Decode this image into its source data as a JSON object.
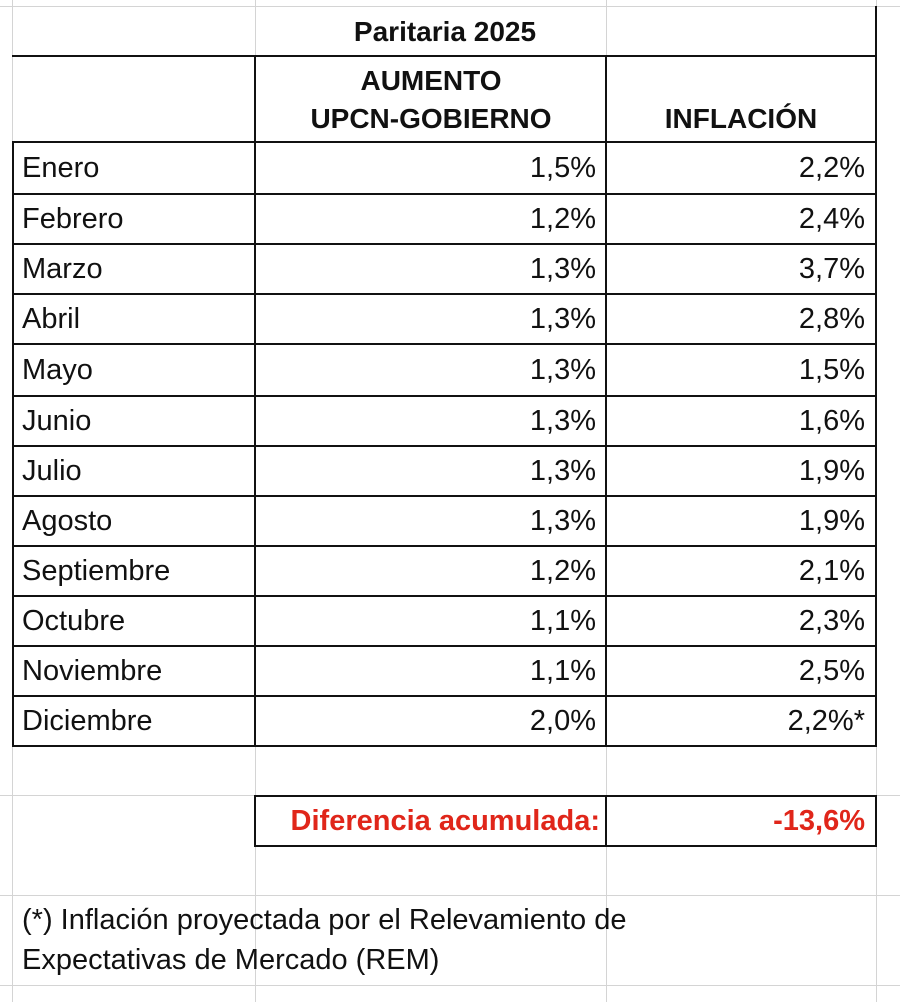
{
  "table": {
    "title": "Paritaria 2025",
    "headers": {
      "month": "",
      "raise_line1": "AUMENTO",
      "raise_line2": "UPCN-GOBIERNO",
      "inflation": "INFLACIÓN"
    },
    "rows": [
      {
        "month": "Enero",
        "raise": "1,5%",
        "inflation": "2,2%"
      },
      {
        "month": "Febrero",
        "raise": "1,2%",
        "inflation": "2,4%"
      },
      {
        "month": "Marzo",
        "raise": "1,3%",
        "inflation": "3,7%"
      },
      {
        "month": "Abril",
        "raise": "1,3%",
        "inflation": "2,8%"
      },
      {
        "month": "Mayo",
        "raise": "1,3%",
        "inflation": "1,5%"
      },
      {
        "month": "Junio",
        "raise": "1,3%",
        "inflation": "1,6%"
      },
      {
        "month": "Julio",
        "raise": "1,3%",
        "inflation": "1,9%"
      },
      {
        "month": "Agosto",
        "raise": "1,3%",
        "inflation": "1,9%"
      },
      {
        "month": "Septiembre",
        "raise": "1,2%",
        "inflation": "2,1%"
      },
      {
        "month": "Octubre",
        "raise": "1,1%",
        "inflation": "2,3%"
      },
      {
        "month": "Noviembre",
        "raise": "1,1%",
        "inflation": "2,5%"
      },
      {
        "month": "Diciembre",
        "raise": "2,0%",
        "inflation": "2,2%*"
      }
    ],
    "difference_label": "Diferencia acumulada:",
    "difference_value": "-13,6%",
    "difference_color": "#e0261a",
    "footnote": "(*) Inflación proyectada por el Relevamiento de Expectativas de Mercado (REM)"
  }
}
